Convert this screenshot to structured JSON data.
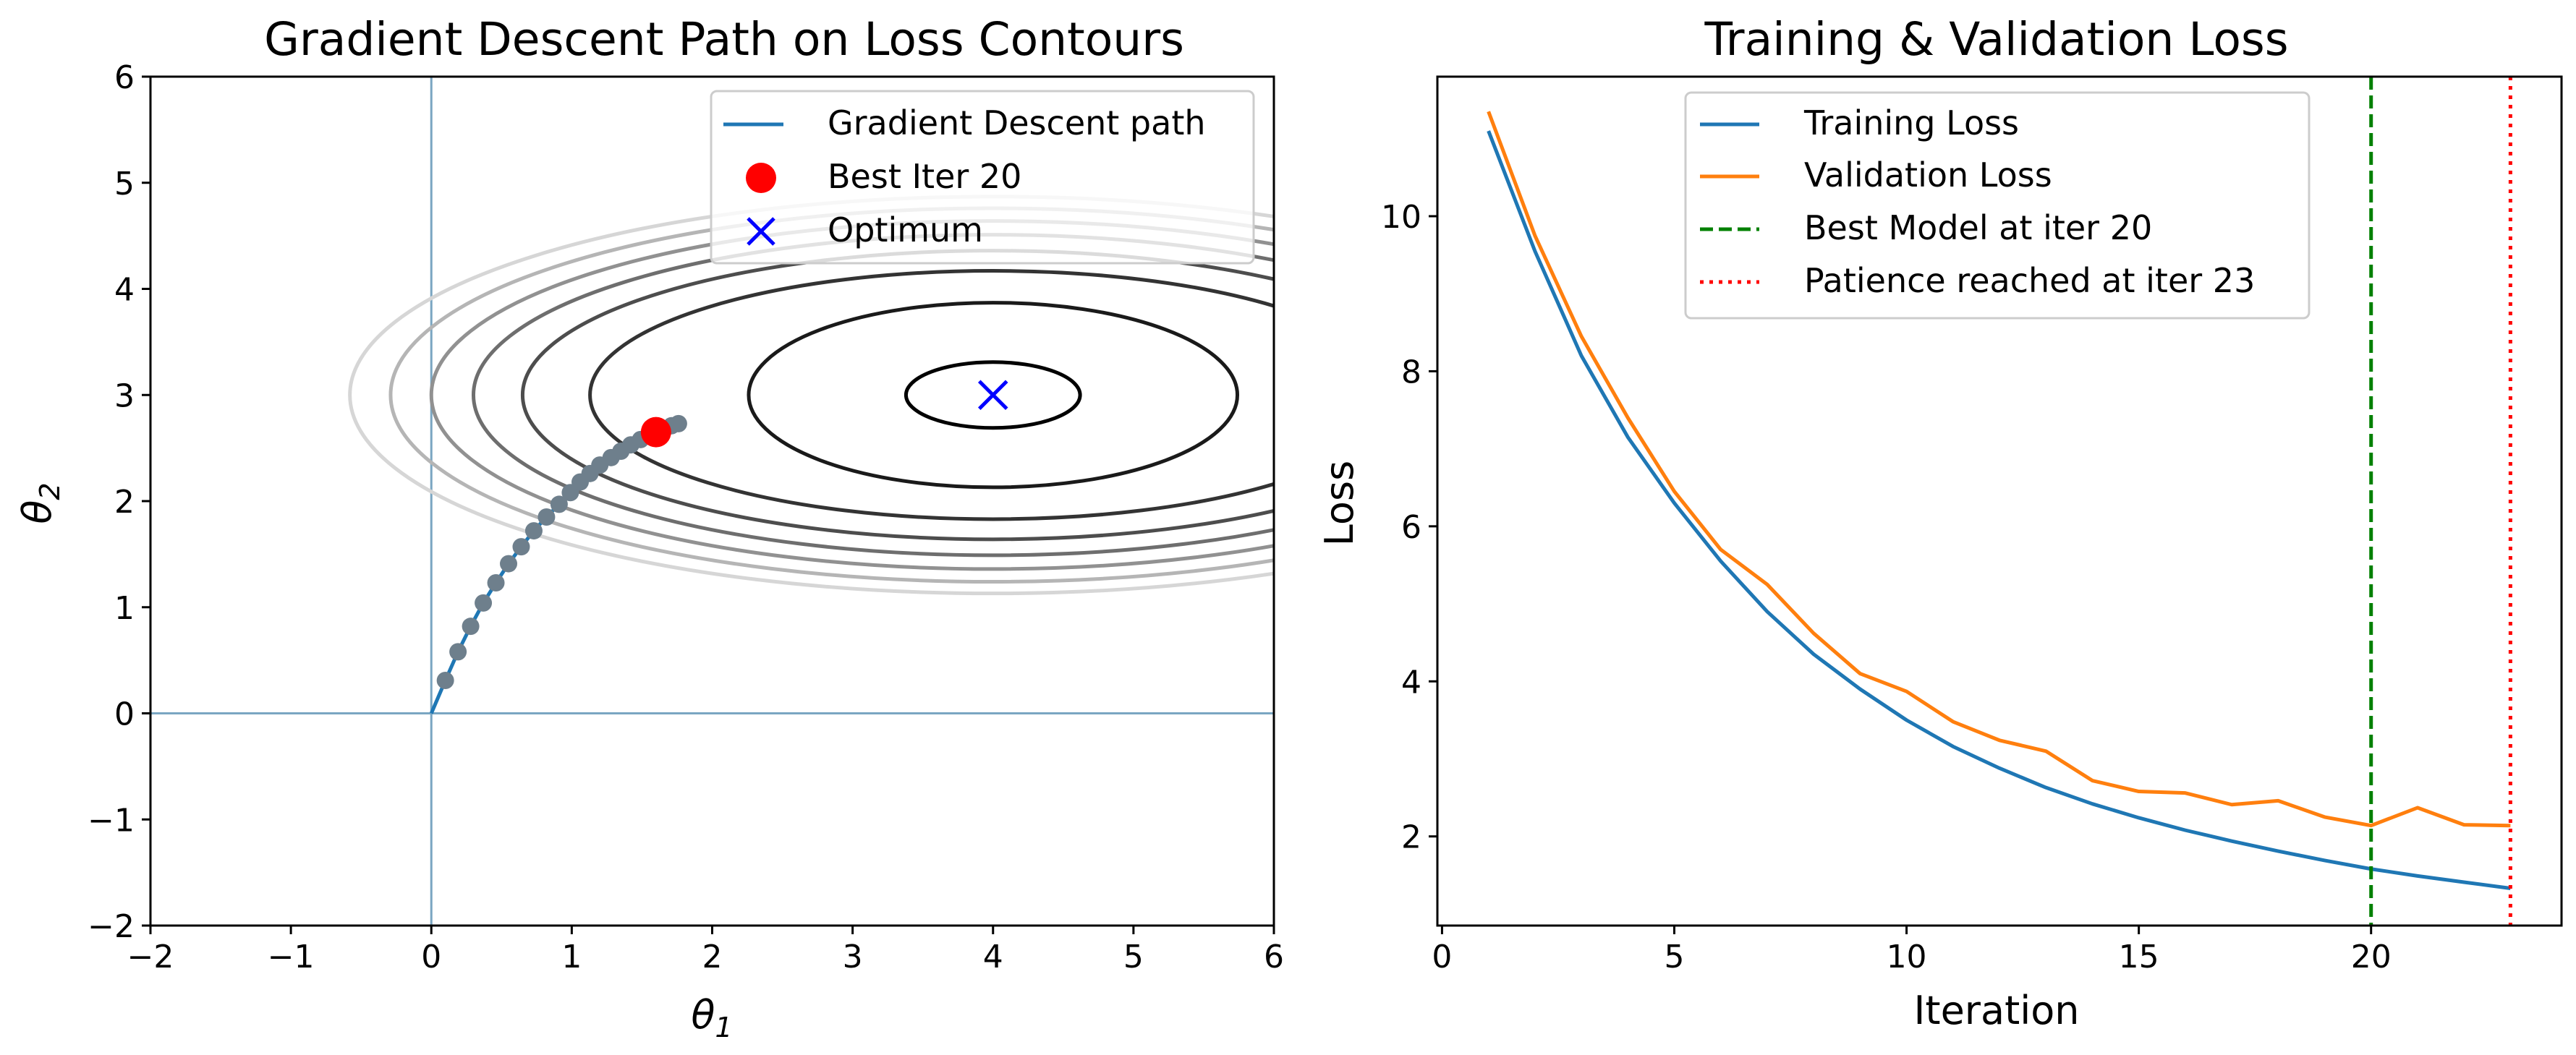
{
  "chart_data": [
    {
      "type": "contour",
      "title": "Gradient Descent Path on Loss Contours",
      "xlabel": "θ1",
      "ylabel": "θ2",
      "xlim": [
        -2,
        6
      ],
      "ylim": [
        -2,
        6
      ],
      "xticks": [
        -2,
        -1,
        0,
        1,
        2,
        3,
        4,
        5,
        6
      ],
      "yticks": [
        -2,
        -1,
        0,
        1,
        2,
        3,
        4,
        5,
        6
      ],
      "xtick_labels": [
        "−2",
        "−1",
        "0",
        "1",
        "2",
        "3",
        "4",
        "5",
        "6"
      ],
      "ytick_labels": [
        "−2",
        "−1",
        "0",
        "1",
        "2",
        "3",
        "4",
        "5",
        "6"
      ],
      "reference_lines": {
        "x": 0,
        "y": 0,
        "color": "#7aa6c2"
      },
      "contours": {
        "center": [
          4,
          3
        ],
        "ellipses": [
          {
            "semi_x": 0.62,
            "semi_y": 0.31,
            "color": "#000000"
          },
          {
            "semi_x": 1.74,
            "semi_y": 0.87,
            "color": "#1a1a1a"
          },
          {
            "semi_x": 2.87,
            "semi_y": 1.17,
            "color": "#333333"
          },
          {
            "semi_x": 3.35,
            "semi_y": 1.36,
            "color": "#4d4d4d"
          },
          {
            "semi_x": 3.7,
            "semi_y": 1.51,
            "color": "#6e6e6e"
          },
          {
            "semi_x": 4.0,
            "semi_y": 1.64,
            "color": "#919191"
          },
          {
            "semi_x": 4.29,
            "semi_y": 1.76,
            "color": "#b5b5b5"
          },
          {
            "semi_x": 4.58,
            "semi_y": 1.87,
            "color": "#d6d6d6"
          }
        ]
      },
      "path": {
        "color": "#1f77b4",
        "marker_color": "#6e7f8c",
        "points": [
          [
            0.0,
            0.0
          ],
          [
            0.1,
            0.31
          ],
          [
            0.19,
            0.58
          ],
          [
            0.28,
            0.82
          ],
          [
            0.37,
            1.04
          ],
          [
            0.46,
            1.23
          ],
          [
            0.55,
            1.41
          ],
          [
            0.64,
            1.57
          ],
          [
            0.73,
            1.72
          ],
          [
            0.82,
            1.85
          ],
          [
            0.91,
            1.97
          ],
          [
            0.99,
            2.08
          ],
          [
            1.06,
            2.18
          ],
          [
            1.13,
            2.26
          ],
          [
            1.2,
            2.34
          ],
          [
            1.28,
            2.41
          ],
          [
            1.35,
            2.47
          ],
          [
            1.42,
            2.53
          ],
          [
            1.49,
            2.58
          ],
          [
            1.55,
            2.62
          ],
          [
            1.6,
            2.65
          ],
          [
            1.66,
            2.68
          ],
          [
            1.71,
            2.71
          ],
          [
            1.76,
            2.73
          ]
        ]
      },
      "best_point": {
        "x": 1.6,
        "y": 2.65,
        "color": "#ff0000"
      },
      "optimum": {
        "x": 4,
        "y": 3,
        "color": "#0000ff"
      },
      "legend": {
        "position": "upper right",
        "entries": [
          "Gradient Descent path",
          "Best Iter 20",
          "Optimum"
        ]
      }
    },
    {
      "type": "line",
      "title": "Training & Validation Loss",
      "xlabel": "Iteration",
      "ylabel": "Loss",
      "xlim": [
        -0.1,
        24.1
      ],
      "ylim": [
        0.85,
        11.8
      ],
      "xticks": [
        0,
        5,
        10,
        15,
        20
      ],
      "yticks": [
        2,
        4,
        6,
        8,
        10
      ],
      "xtick_labels": [
        "0",
        "5",
        "10",
        "15",
        "20"
      ],
      "ytick_labels": [
        "2",
        "4",
        "6",
        "8",
        "10"
      ],
      "x": [
        1,
        2,
        3,
        4,
        5,
        6,
        7,
        8,
        9,
        10,
        11,
        12,
        13,
        14,
        15,
        16,
        17,
        18,
        19,
        20,
        21,
        22,
        23
      ],
      "series": [
        {
          "name": "Training Loss",
          "color": "#1f77b4",
          "values": [
            11.1,
            9.55,
            8.2,
            7.15,
            6.3,
            5.55,
            4.9,
            4.35,
            3.9,
            3.5,
            3.16,
            2.88,
            2.63,
            2.42,
            2.24,
            2.08,
            1.94,
            1.81,
            1.69,
            1.58,
            1.49,
            1.41,
            1.33
          ]
        },
        {
          "name": "Validation Loss",
          "color": "#ff7f0e",
          "values": [
            11.35,
            9.75,
            8.45,
            7.4,
            6.45,
            5.7,
            5.25,
            4.62,
            4.1,
            3.87,
            3.48,
            3.24,
            3.1,
            2.72,
            2.58,
            2.56,
            2.41,
            2.46,
            2.25,
            2.14,
            2.37,
            2.15,
            2.14
          ]
        }
      ],
      "vlines": [
        {
          "name": "Best Model at iter 20",
          "x": 20,
          "color": "#008000",
          "style": "dashed"
        },
        {
          "name": "Patience reached at iter 23",
          "x": 23,
          "color": "#ff0000",
          "style": "dotted"
        }
      ],
      "legend": {
        "position": "upper center",
        "entries": [
          "Training Loss",
          "Validation Loss",
          "Best Model at iter 20",
          "Patience reached at iter 23"
        ]
      }
    }
  ]
}
